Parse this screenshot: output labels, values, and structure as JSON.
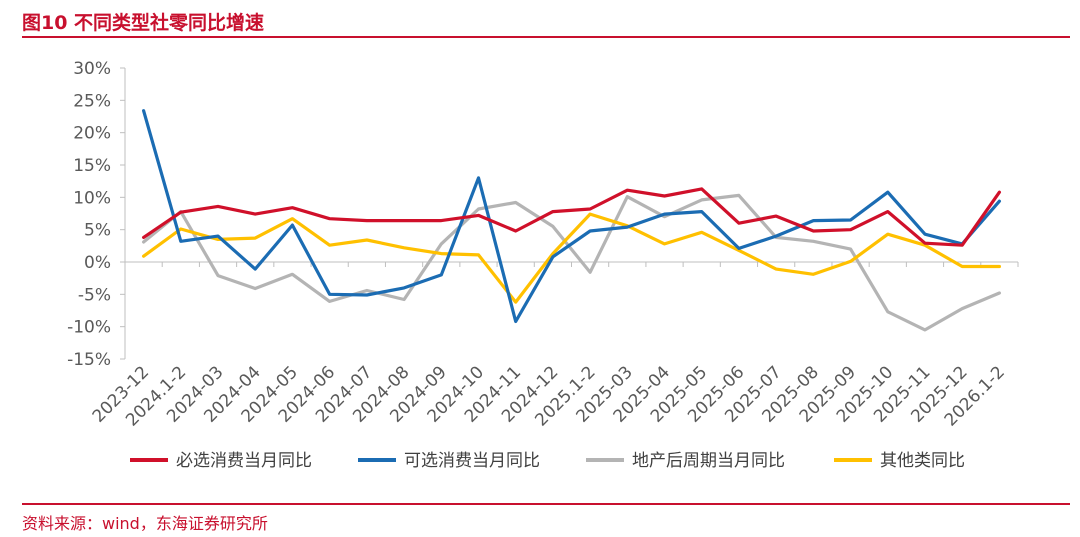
{
  "figure": {
    "title": "图10  不同类型社零同比增速",
    "source": "资料来源：wind，东海证券研究所"
  },
  "colors": {
    "accent": "#c8102e"
  },
  "chart_data": {
    "type": "line",
    "title": "不同类型社零同比增速",
    "xlabel": "",
    "ylabel": "",
    "ylim": [
      -15,
      30
    ],
    "yticks": [
      30,
      25,
      20,
      15,
      10,
      5,
      0,
      -5,
      -10,
      -15
    ],
    "ytick_labels": [
      "30%",
      "25%",
      "20%",
      "15%",
      "10%",
      "5%",
      "0%",
      "-5%",
      "-10%",
      "-15%"
    ],
    "grid": false,
    "legend_position": "bottom",
    "categories": [
      "2023-12",
      "2024.1-2",
      "2024-03",
      "2024-04",
      "2024-05",
      "2024-06",
      "2024-07",
      "2024-08",
      "2024-09",
      "2024-10",
      "2024-11",
      "2024-12",
      "2025.1-2",
      "2025-03",
      "2025-04",
      "2025-05",
      "2025-06",
      "2025-07",
      "2025-08",
      "2025-09",
      "2025-10",
      "2025-11",
      "2025-12",
      "2026.1-2"
    ],
    "series": [
      {
        "name": "必选消费当月同比",
        "color": "#d0102a",
        "values": [
          3.8,
          7.7,
          8.6,
          7.4,
          8.4,
          6.7,
          6.4,
          6.4,
          6.4,
          7.2,
          4.8,
          7.8,
          8.2,
          11.1,
          10.2,
          11.3,
          6.0,
          7.1,
          4.8,
          5.0,
          7.8,
          2.9,
          2.6,
          10.8
        ]
      },
      {
        "name": "可选消费当月同比",
        "color": "#1b6cb3",
        "values": [
          23.4,
          3.2,
          4.0,
          -1.1,
          5.7,
          -5.0,
          -5.1,
          -4.0,
          -2.0,
          13.0,
          -9.2,
          0.8,
          4.8,
          5.4,
          7.4,
          7.8,
          2.1,
          4.0,
          6.4,
          6.5,
          10.8,
          4.3,
          2.8,
          9.4
        ]
      },
      {
        "name": "地产后周期当月同比",
        "color": "#b4b4b4",
        "values": [
          3.1,
          7.8,
          -2.1,
          -4.1,
          -1.9,
          -6.1,
          -4.4,
          -5.8,
          2.8,
          8.2,
          9.2,
          5.5,
          -1.6,
          10.1,
          7.0,
          9.6,
          10.3,
          3.8,
          3.2,
          2.0,
          -7.7,
          -10.5,
          -7.2,
          -4.8
        ]
      },
      {
        "name": "其他类同比",
        "color": "#ffc000",
        "values": [
          0.9,
          5.1,
          3.5,
          3.7,
          6.7,
          2.6,
          3.4,
          2.2,
          1.3,
          1.1,
          -6.2,
          1.3,
          7.4,
          5.6,
          2.8,
          4.6,
          1.8,
          -1.1,
          -1.9,
          0.1,
          4.3,
          2.6,
          -0.7,
          -0.7
        ]
      }
    ]
  }
}
